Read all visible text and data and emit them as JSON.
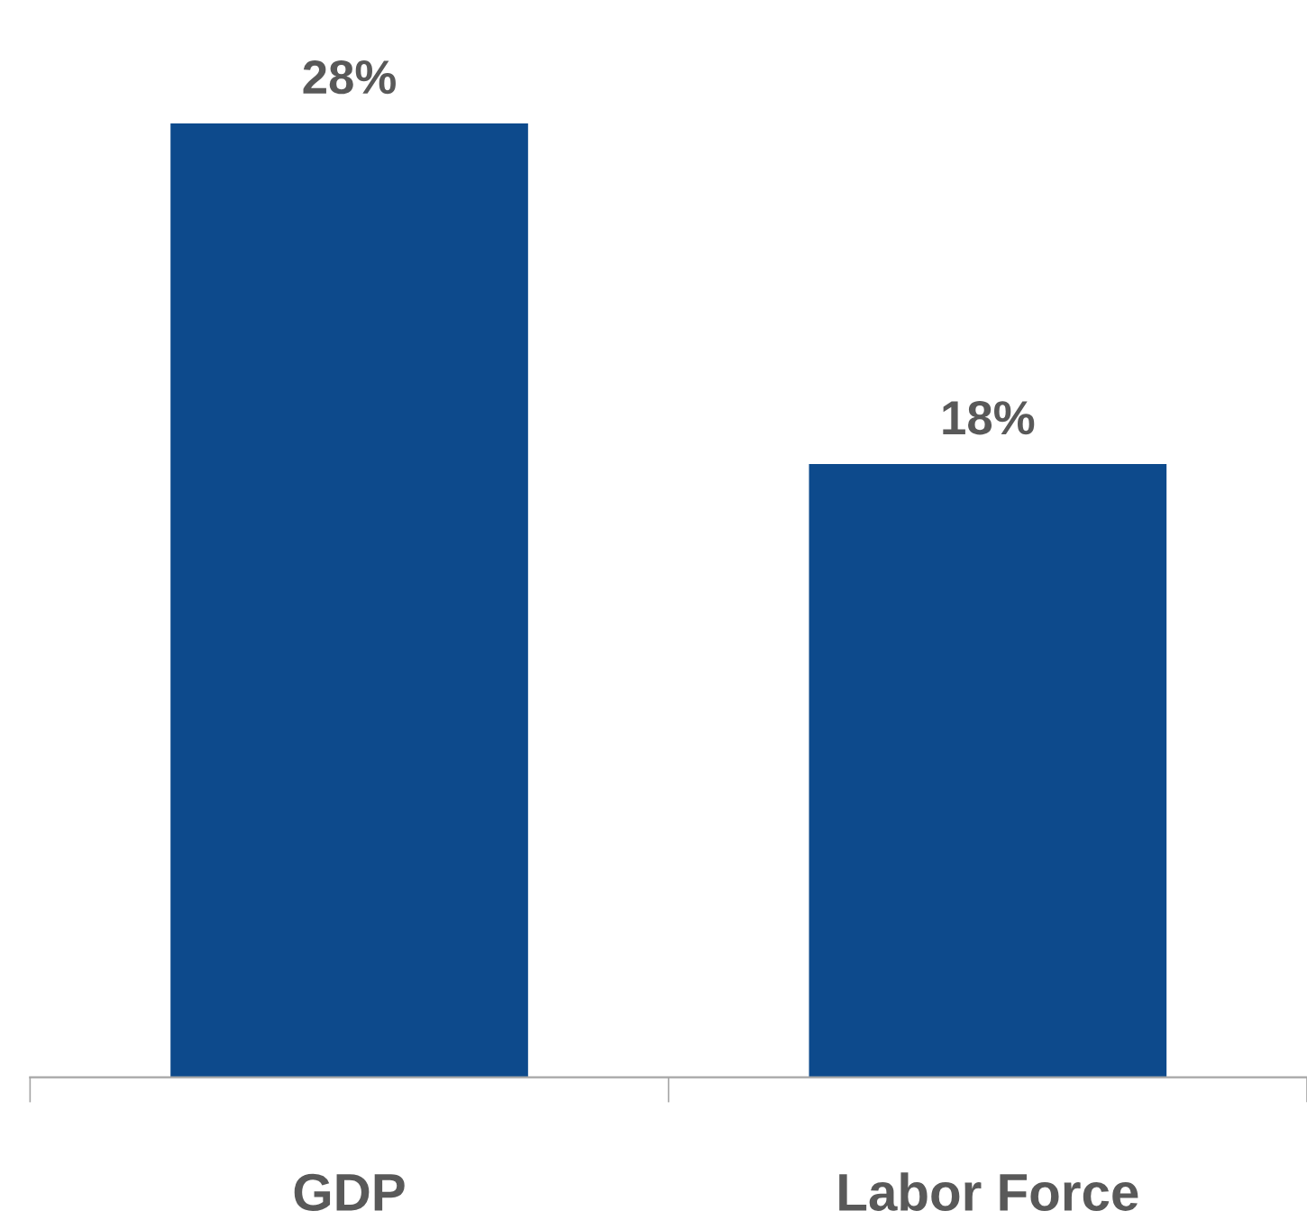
{
  "chart_data": {
    "type": "bar",
    "categories": [
      "GDP",
      "Labor Force"
    ],
    "values": [
      28,
      18
    ],
    "color": "#0d4a8c",
    "data_labels": true,
    "value_labels": [
      "28%",
      "18%"
    ],
    "grid": false,
    "legend": false
  }
}
